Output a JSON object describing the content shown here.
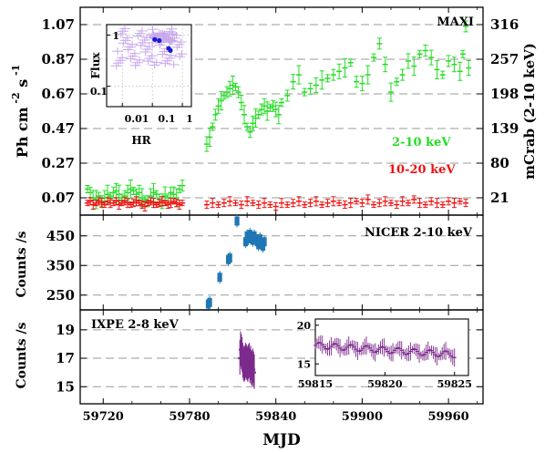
{
  "chart_data": [
    {
      "type": "scatter",
      "panel": "maxi",
      "label": "MAXI",
      "ylabel_left": "Ph cm -2 s -1",
      "ylabel_right": "mCrab (2-10 keV)",
      "ylim": [
        -0.03,
        1.17
      ],
      "yticks": [
        0.07,
        0.27,
        0.47,
        0.67,
        0.87,
        1.07
      ],
      "yticks_labels": [
        "0.07",
        "0.27",
        "0.47",
        "0.67",
        "0.87",
        "1.07"
      ],
      "yticks_right": [
        0.07,
        0.27,
        0.47,
        0.67,
        0.87,
        1.07
      ],
      "yticks_right_labels": [
        "21",
        "80",
        "139",
        "198",
        "257",
        "316"
      ],
      "grid": "horizontal dashed",
      "series": [
        {
          "name": "2-10 keV",
          "color": "#22dd22",
          "x": [
            59709,
            59711,
            59713,
            59715,
            59717,
            59719,
            59721,
            59723,
            59725,
            59727,
            59729,
            59731,
            59733,
            59735,
            59737,
            59739,
            59741,
            59743,
            59745,
            59747,
            59749,
            59751,
            59753,
            59755,
            59757,
            59759,
            59761,
            59763,
            59765,
            59767,
            59769,
            59771,
            59773,
            59775,
            59792,
            59794,
            59796,
            59798,
            59800,
            59802,
            59804,
            59806,
            59808,
            59810,
            59812,
            59814,
            59816,
            59818,
            59820,
            59822,
            59824,
            59826,
            59828,
            59830,
            59832,
            59834,
            59836,
            59838,
            59840,
            59842,
            59844,
            59848,
            59852,
            59856,
            59860,
            59864,
            59868,
            59872,
            59876,
            59880,
            59884,
            59888,
            59892,
            59896,
            59900,
            59904,
            59908,
            59912,
            59916,
            59920,
            59924,
            59928,
            59932,
            59936,
            59940,
            59944,
            59948,
            59952,
            59956,
            59960,
            59964,
            59968,
            59970,
            59972,
            59974
          ],
          "y": [
            0.12,
            0.1,
            0.07,
            0.06,
            0.08,
            0.05,
            0.07,
            0.09,
            0.08,
            0.1,
            0.11,
            0.09,
            0.07,
            0.08,
            0.1,
            0.12,
            0.11,
            0.09,
            0.1,
            0.07,
            0.06,
            0.05,
            0.08,
            0.1,
            0.09,
            0.06,
            0.05,
            0.08,
            0.07,
            0.1,
            0.09,
            0.07,
            0.12,
            0.14,
            0.38,
            0.42,
            0.48,
            0.55,
            0.6,
            0.63,
            0.66,
            0.68,
            0.7,
            0.72,
            0.71,
            0.68,
            0.62,
            0.55,
            0.48,
            0.45,
            0.5,
            0.53,
            0.55,
            0.58,
            0.6,
            0.57,
            0.59,
            0.6,
            0.58,
            0.55,
            0.62,
            0.66,
            0.74,
            0.78,
            0.68,
            0.7,
            0.72,
            0.75,
            0.76,
            0.78,
            0.8,
            0.82,
            0.85,
            0.74,
            0.73,
            0.78,
            0.88,
            0.96,
            0.84,
            0.68,
            0.74,
            0.78,
            0.86,
            0.83,
            0.9,
            0.92,
            0.88,
            0.81,
            0.78,
            0.86,
            0.84,
            0.8,
            0.9,
            1.06,
            0.82
          ]
        },
        {
          "name": "10-20 keV",
          "color": "#ee1111",
          "x": [
            59709,
            59711,
            59713,
            59715,
            59717,
            59719,
            59721,
            59723,
            59725,
            59727,
            59729,
            59731,
            59733,
            59735,
            59737,
            59739,
            59741,
            59743,
            59745,
            59747,
            59749,
            59751,
            59753,
            59755,
            59757,
            59759,
            59761,
            59763,
            59765,
            59767,
            59769,
            59771,
            59773,
            59775,
            59792,
            59796,
            59800,
            59804,
            59808,
            59812,
            59816,
            59820,
            59824,
            59828,
            59832,
            59836,
            59840,
            59844,
            59848,
            59852,
            59856,
            59860,
            59864,
            59868,
            59872,
            59876,
            59880,
            59884,
            59888,
            59892,
            59896,
            59900,
            59904,
            59908,
            59912,
            59916,
            59920,
            59924,
            59928,
            59932,
            59936,
            59940,
            59944,
            59948,
            59952,
            59956,
            59960,
            59964,
            59968,
            59972
          ],
          "y": [
            0.04,
            0.05,
            0.03,
            0.04,
            0.05,
            0.04,
            0.03,
            0.05,
            0.04,
            0.04,
            0.05,
            0.03,
            0.04,
            0.05,
            0.04,
            0.03,
            0.04,
            0.05,
            0.04,
            0.03,
            0.02,
            0.04,
            0.05,
            0.04,
            0.03,
            0.04,
            0.05,
            0.04,
            0.03,
            0.04,
            0.05,
            0.04,
            0.03,
            0.04,
            0.03,
            0.04,
            0.03,
            0.04,
            0.05,
            0.04,
            0.03,
            0.05,
            0.04,
            0.03,
            0.04,
            0.03,
            0.02,
            0.04,
            0.03,
            0.04,
            0.05,
            0.03,
            0.04,
            0.05,
            0.03,
            0.04,
            0.05,
            0.04,
            0.03,
            0.04,
            0.05,
            0.04,
            0.06,
            0.03,
            0.04,
            0.05,
            0.04,
            0.03,
            0.05,
            0.04,
            0.06,
            0.04,
            0.03,
            0.05,
            0.04,
            0.03,
            0.05,
            0.04,
            0.05,
            0.04
          ]
        }
      ],
      "inset": {
        "xlabel": "HR",
        "ylabel": "Flux",
        "xtick_labels": [
          "0.01",
          "0.1",
          "1"
        ],
        "ytick_labels": [
          "0.1",
          "1"
        ],
        "scale": "log-log",
        "blue_points": [
          [
            0.12,
            0.82
          ],
          [
            0.17,
            0.78
          ],
          [
            0.35,
            0.55
          ],
          [
            0.4,
            0.5
          ]
        ]
      }
    },
    {
      "type": "scatter",
      "panel": "nicer",
      "label": "NICER 2-10 keV",
      "ylabel": "Counts /s",
      "ylim": [
        200,
        520
      ],
      "yticks": [
        250,
        350,
        450
      ],
      "yticks_labels": [
        "250",
        "350",
        "450"
      ],
      "series": [
        {
          "name": "NICER 2-10 keV",
          "color": "#1f77b4",
          "x": [
            59793,
            59794,
            59801,
            59807,
            59808,
            59813,
            59819,
            59820,
            59821,
            59822,
            59823,
            59824,
            59825,
            59826,
            59827,
            59828,
            59829,
            59830,
            59831,
            59832
          ],
          "y": [
            220,
            225,
            310,
            370,
            375,
            500,
            430,
            450,
            440,
            455,
            445,
            435,
            450,
            440,
            430,
            420,
            440,
            425,
            415,
            430
          ]
        }
      ]
    },
    {
      "type": "scatter",
      "panel": "ixpe",
      "label": "IXPE 2-8 keV",
      "ylabel": "Counts /s",
      "xlabel": "MJD",
      "ylim": [
        13.8,
        20.4
      ],
      "yticks": [
        15,
        17,
        19
      ],
      "yticks_labels": [
        "15",
        "17",
        "19"
      ],
      "xlim": [
        59704,
        59984
      ],
      "xticks": [
        59720,
        59780,
        59840,
        59900,
        59960
      ],
      "xticks_labels": [
        "59720",
        "59780",
        "59840",
        "59900",
        "59960"
      ],
      "series": [
        {
          "name": "IXPE 2-8 keV",
          "color": "#7b2a8c",
          "x": [
            59815.0,
            59815.5,
            59816.0,
            59816.5,
            59817.0,
            59817.5,
            59818.0,
            59818.5,
            59819.0,
            59819.5,
            59820.0,
            59820.5,
            59821.0,
            59821.5,
            59822.0,
            59822.5,
            59823.0,
            59823.5,
            59824.0,
            59824.5,
            59825.0
          ],
          "y": [
            17.0,
            17.6,
            17.4,
            17.2,
            16.8,
            16.6,
            16.5,
            16.6,
            16.8,
            16.7,
            16.6,
            16.5,
            16.7,
            16.8,
            16.4,
            16.6,
            16.3,
            16.2,
            16.4,
            16.2,
            16.0
          ]
        }
      ],
      "inset": {
        "xlim": [
          59815,
          59826
        ],
        "ylim": [
          13.5,
          20.8
        ],
        "xticks_labels": [
          "59815",
          "59820",
          "59825"
        ],
        "yticks_labels": [
          "15",
          "20"
        ]
      }
    }
  ]
}
